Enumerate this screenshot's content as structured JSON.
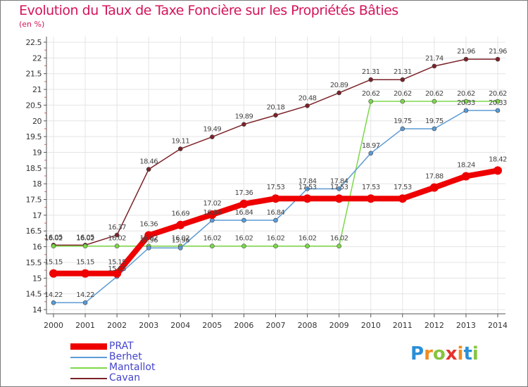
{
  "header": {
    "title": "Evolution du Taux de Taxe Foncière sur les Propriétés Bâties",
    "unit": "(en %)"
  },
  "logo": {
    "text": "Proxiti",
    "letters": [
      "P",
      "r",
      "o",
      "x",
      "i",
      "t",
      "i"
    ],
    "colors": [
      "#2a8fd6",
      "#f08c1f",
      "#86c440",
      "#e6322c",
      "#f08c1f",
      "#2a8fd6",
      "#86c440"
    ]
  },
  "chart_data": {
    "type": "line",
    "title": "Evolution du Taux de Taxe Foncière sur les Propriétés Bâties",
    "ylabel": "(en %)",
    "xlabel": "",
    "ylim": [
      14,
      22.5
    ],
    "yticks": [
      "14",
      "14.5",
      "15",
      "15.5",
      "16",
      "16.5",
      "17",
      "17.5",
      "18",
      "18.5",
      "19",
      "19.5",
      "20",
      "20.5",
      "21",
      "21.5",
      "22",
      "22.5"
    ],
    "categories": [
      "2000",
      "2001",
      "2002",
      "2003",
      "2004",
      "2005",
      "2006",
      "2007",
      "2008",
      "2009",
      "2010",
      "2011",
      "2012",
      "2013",
      "2014"
    ],
    "series": [
      {
        "name": "PRAT",
        "color": "#ee0000",
        "values": [
          15.15,
          15.15,
          15.15,
          16.36,
          16.69,
          17.02,
          17.36,
          17.53,
          17.53,
          17.53,
          17.53,
          17.53,
          17.88,
          18.24,
          18.42
        ],
        "labels": [
          "15.15",
          "15.15",
          "15.15",
          "16.36",
          "16.69",
          "17.02",
          "17.36",
          "17.53",
          "17.53",
          "17.53",
          "17.53",
          "17.53",
          "17.88",
          "18.24",
          "18.42"
        ]
      },
      {
        "name": "Berhet",
        "color": "#5b9bd5",
        "values": [
          14.22,
          14.22,
          15.05,
          15.96,
          15.96,
          16.84,
          16.84,
          16.84,
          17.84,
          17.84,
          18.97,
          19.75,
          19.75,
          20.33,
          20.33
        ],
        "labels": [
          "14.22",
          "14.22",
          "15.05",
          "15.96",
          "15.96",
          "16.84",
          "16.84",
          "16.84",
          "17.84",
          "17.84",
          "18.97",
          "19.75",
          "19.75",
          "20.33",
          "20.33"
        ]
      },
      {
        "name": "Mantallot",
        "color": "#7ed84a",
        "values": [
          16.02,
          16.02,
          16.02,
          16.02,
          16.02,
          16.02,
          16.02,
          16.02,
          16.02,
          16.02,
          20.62,
          20.62,
          20.62,
          20.62,
          20.62
        ],
        "labels": [
          "16.02",
          "16.02",
          "16.02",
          "16.02",
          "16.02",
          "16.02",
          "16.02",
          "16.02",
          "16.02",
          "16.02",
          "20.62",
          "20.62",
          "20.62",
          "20.62",
          "20.62"
        ]
      },
      {
        "name": "Cavan",
        "color": "#7b2228",
        "values": [
          16.05,
          16.05,
          16.37,
          18.46,
          19.11,
          19.49,
          19.89,
          20.18,
          20.48,
          20.89,
          21.31,
          21.31,
          21.74,
          21.96,
          21.96
        ],
        "labels": [
          "16.05",
          "16.05",
          "16.37",
          "18.46",
          "19.11",
          "19.49",
          "19.89",
          "20.18",
          "20.48",
          "20.89",
          "21.31",
          "21.31",
          "21.74",
          "21.96",
          "21.96"
        ]
      }
    ]
  }
}
